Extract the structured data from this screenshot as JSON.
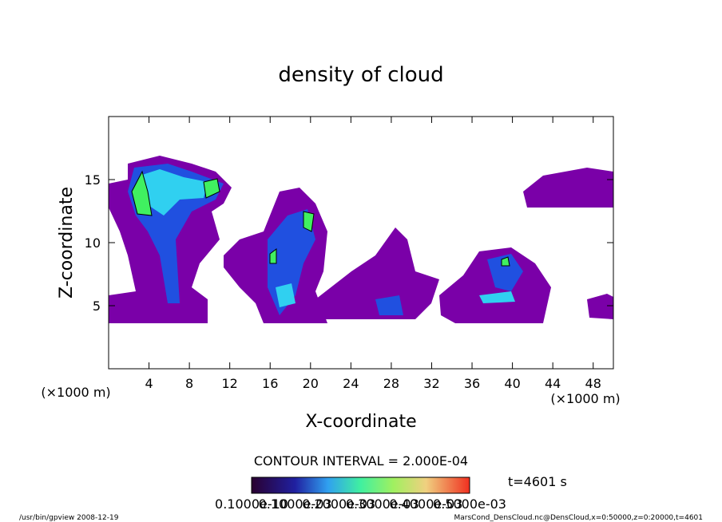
{
  "chart_data": {
    "type": "contour",
    "title": "density of cloud",
    "xlabel": "X-coordinate",
    "ylabel": "Z-coordinate",
    "xunit_left": "(×1000 m)",
    "xunit_right": "(×1000 m)",
    "xlim": [
      0,
      50
    ],
    "ylim": [
      0,
      20
    ],
    "xticks": [
      4,
      8,
      12,
      16,
      20,
      24,
      28,
      32,
      36,
      40,
      44,
      48
    ],
    "yticks": [
      5,
      10,
      15
    ],
    "contour_interval": "CONTOUR INTERVAL = 2.000E-04",
    "time": "t=4601 s",
    "colorbar_labels": [
      "0.1000e-10",
      "0.1000e-03",
      "0.2000e-03",
      "0.3000e-03",
      "0.4000e-03",
      "0.5000e-03"
    ],
    "footer_left": "/usr/bin/gpview   2008-12-19",
    "footer_right": "MarsCond_DensCloud.nc@DensCloud,x=0:50000,z=0:20000,t=4601"
  }
}
